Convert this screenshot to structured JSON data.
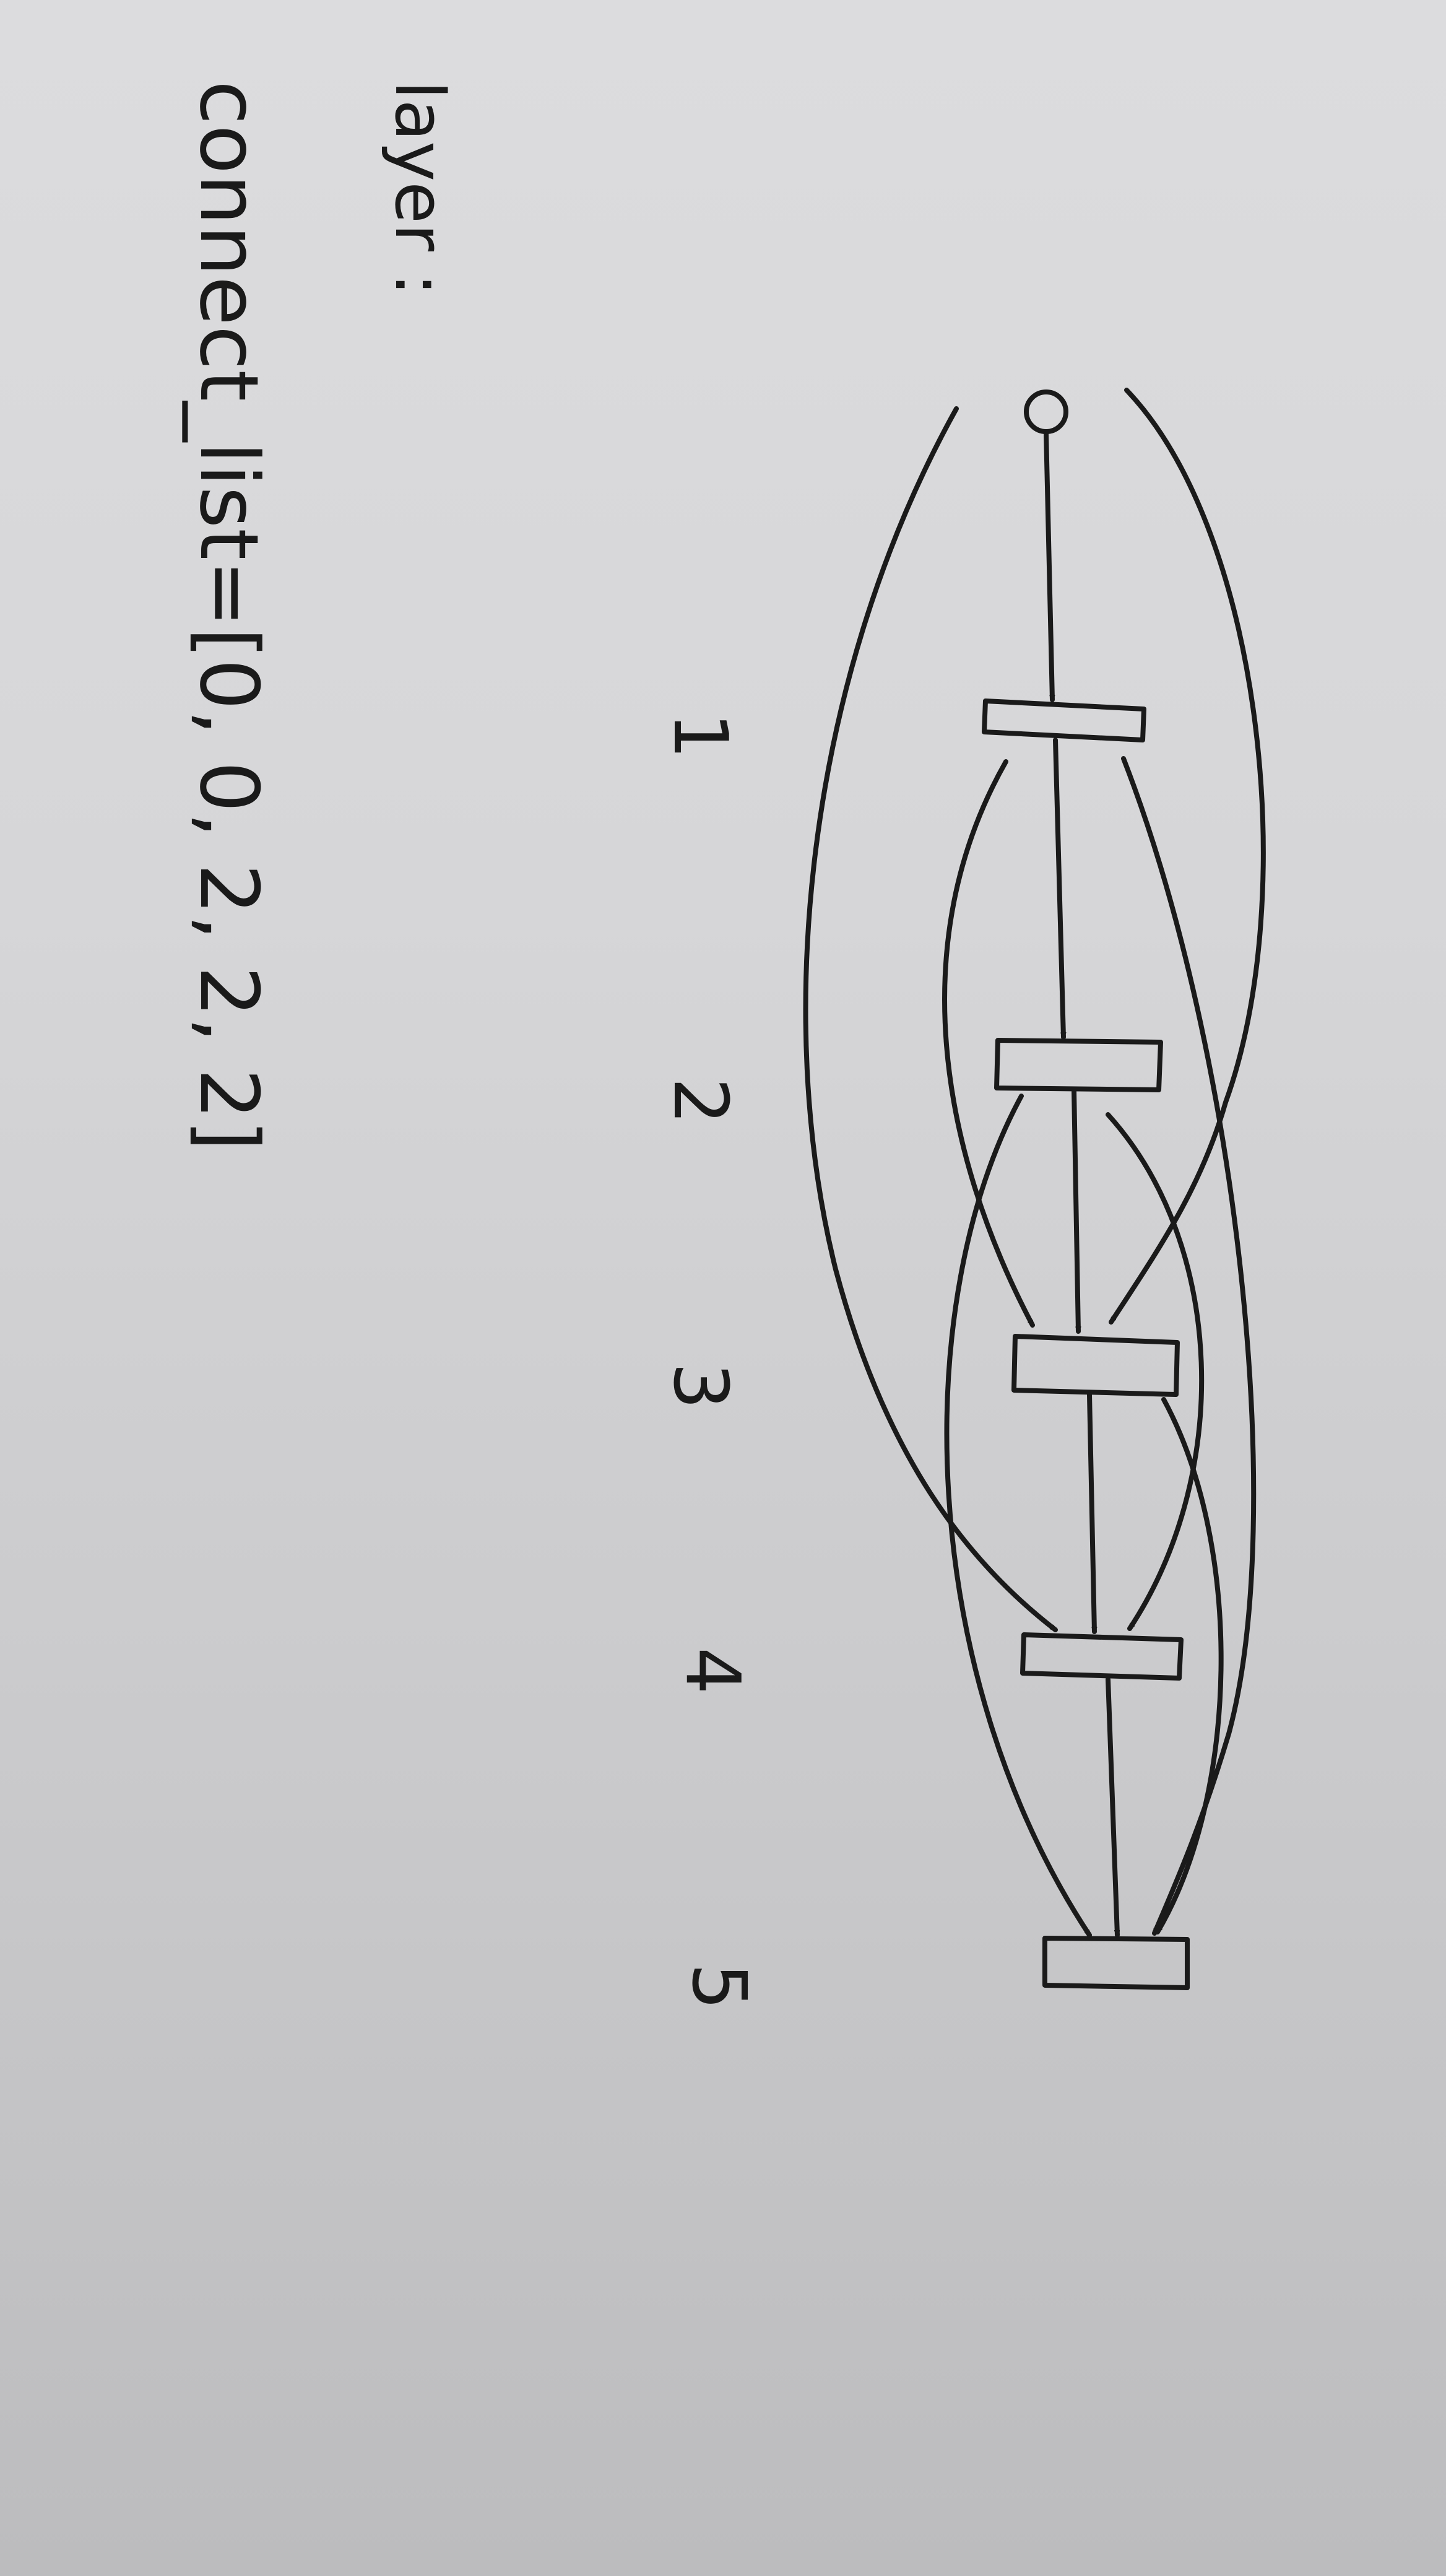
{
  "note": {
    "heading": "layer :",
    "code_line": "connect_list=[0, 0, 2, 2, 2]"
  },
  "diagram": {
    "input_node_label": "",
    "layers": [
      {
        "label": "1"
      },
      {
        "label": "2"
      },
      {
        "label": "3"
      },
      {
        "label": "4"
      },
      {
        "label": "5"
      }
    ],
    "connections": [
      {
        "from": "input",
        "to": "1"
      },
      {
        "from": "input",
        "to": "3"
      },
      {
        "from": "input",
        "to": "4"
      },
      {
        "from": "1",
        "to": "2"
      },
      {
        "from": "1",
        "to": "3"
      },
      {
        "from": "1",
        "to": "5"
      },
      {
        "from": "2",
        "to": "3"
      },
      {
        "from": "2",
        "to": "4"
      },
      {
        "from": "2",
        "to": "5"
      },
      {
        "from": "3",
        "to": "4"
      },
      {
        "from": "3",
        "to": "5"
      },
      {
        "from": "4",
        "to": "5"
      }
    ]
  }
}
